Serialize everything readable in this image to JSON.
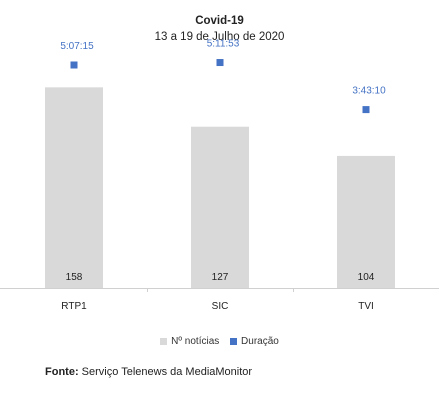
{
  "title": "Covid-19",
  "subtitle": "13 a 19 de Julho de 2020",
  "chart_data": {
    "type": "bar",
    "categories": [
      "RTP1",
      "SIC",
      "TVI"
    ],
    "series": [
      {
        "name": "Nº notícias",
        "type": "bar",
        "values": [
          158,
          127,
          104
        ],
        "color": "#d9d9d9"
      },
      {
        "name": "Duração",
        "type": "marker",
        "values": [
          "5:07:15",
          "5:11:53",
          "3:43:10"
        ],
        "color": "#4472c4"
      }
    ],
    "bar_labels": [
      "158",
      "127",
      "104"
    ],
    "marker_labels": [
      "5:07:15",
      "5:11:53",
      "3:43:10"
    ],
    "legend_position": "bottom",
    "grid": false,
    "ylim_bars": [
      0,
      180
    ]
  },
  "legend": [
    {
      "label": "Nº notícias",
      "color": "#d9d9d9"
    },
    {
      "label": "Duração",
      "color": "#4472c4"
    }
  ],
  "source": {
    "label": "Fonte:",
    "text": "Serviço Telenews da MediaMonitor"
  }
}
